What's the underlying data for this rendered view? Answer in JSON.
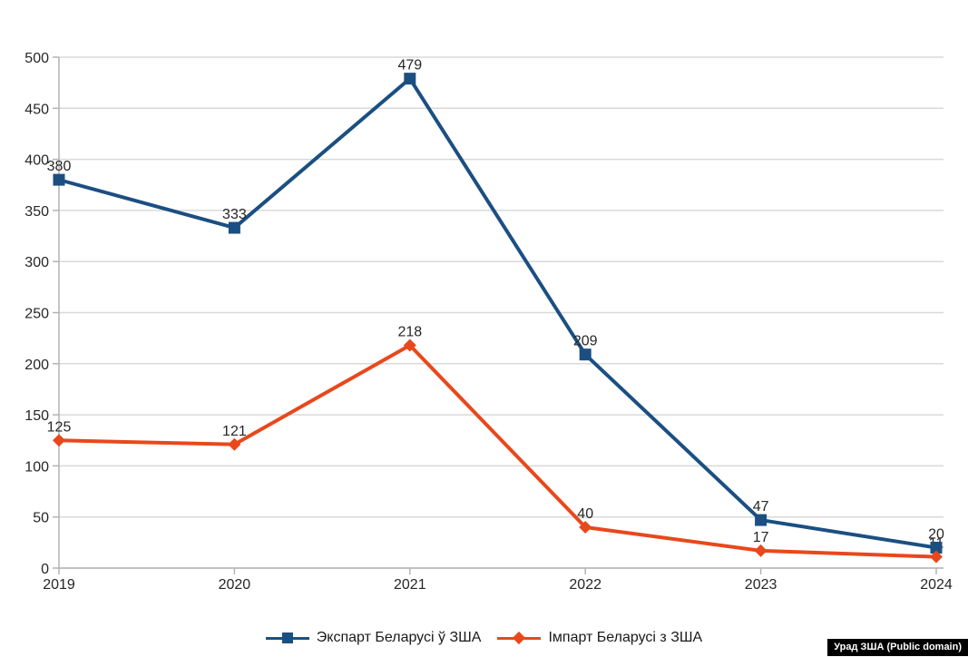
{
  "chart_data": {
    "type": "line",
    "title": "",
    "xlabel": "",
    "ylabel": "",
    "categories": [
      "2019",
      "2020",
      "2021",
      "2022",
      "2023",
      "2024"
    ],
    "series": [
      {
        "name": "Экспарт Беларусі ў ЗША",
        "values": [
          380,
          333,
          479,
          209,
          47,
          20
        ],
        "color": "#1b4f82",
        "marker": "square"
      },
      {
        "name": "Імпарт Беларусі з ЗША",
        "values": [
          125,
          121,
          218,
          40,
          17,
          11
        ],
        "color": "#e8481c",
        "marker": "diamond"
      }
    ],
    "ylim": [
      0,
      500
    ],
    "yticks": [
      0,
      50,
      100,
      150,
      200,
      250,
      300,
      350,
      400,
      450,
      500
    ],
    "grid": "horizontal",
    "legend_position": "bottom",
    "data_labels": true
  },
  "watermark": {
    "text": "Урад ЗША (Public domain)"
  },
  "colors": {
    "background": "#ffffff",
    "gridline": "#d9d9d9",
    "axis": "#b3b3b3",
    "tick_text": "#262626",
    "label_text": "#262626"
  }
}
